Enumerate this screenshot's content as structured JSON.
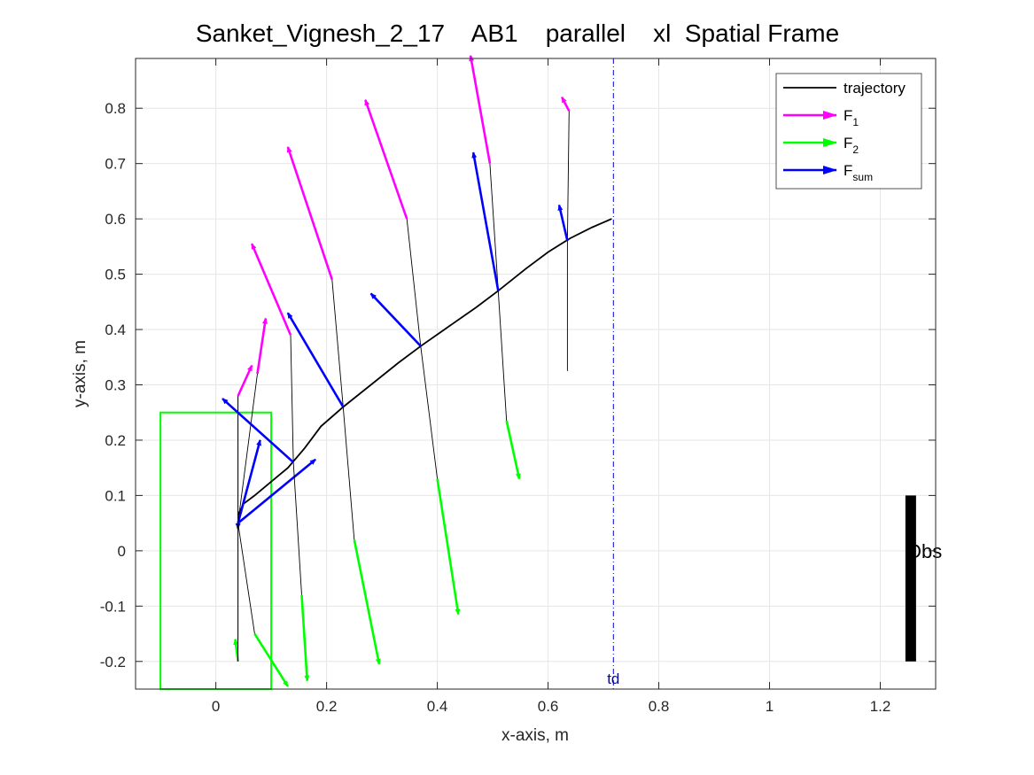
{
  "chart_data": {
    "type": "line",
    "title": "Sanket_Vignesh_2_17    AB1    parallel    xl  Spatial Frame",
    "xlabel": "x-axis, m",
    "ylabel": "y-axis, m",
    "xlim": [
      -0.145,
      1.3
    ],
    "ylim": [
      -0.25,
      0.89
    ],
    "xticks": [
      0,
      0.2,
      0.4,
      0.6,
      0.8,
      1.0,
      1.2
    ],
    "xticklabels": [
      "0",
      "0.2",
      "0.4",
      "0.6",
      "0.8",
      "1",
      "1.2"
    ],
    "yticks": [
      -0.2,
      -0.1,
      0,
      0.1,
      0.2,
      0.3,
      0.4,
      0.5,
      0.6,
      0.7,
      0.8
    ],
    "yticklabels": [
      "-0.2",
      "-0.1",
      "0",
      "0.1",
      "0.2",
      "0.3",
      "0.4",
      "0.5",
      "0.6",
      "0.7",
      "0.8"
    ],
    "grid": true,
    "legend_location": "top-right",
    "legend": [
      {
        "label": "trajectory",
        "sub": "",
        "color": "#000000",
        "kind": "line"
      },
      {
        "label": "F",
        "sub": "1",
        "color": "#ff00ff",
        "kind": "arrow"
      },
      {
        "label": "F",
        "sub": "2",
        "color": "#00ff00",
        "kind": "arrow"
      },
      {
        "label": "F",
        "sub": "sum",
        "color": "#0000ff",
        "kind": "arrow"
      }
    ],
    "colors": {
      "trajectory": "#000000",
      "F1": "#ff00ff",
      "F2": "#00ff00",
      "Fsum": "#0000ff",
      "start_box": "#00ff00",
      "td_line": "#0000cc",
      "obstacle": "#000000"
    },
    "trajectory": {
      "x": [
        0.04,
        0.05,
        0.07,
        0.1,
        0.13,
        0.16,
        0.19,
        0.23,
        0.28,
        0.33,
        0.37,
        0.42,
        0.47,
        0.51,
        0.56,
        0.6,
        0.64,
        0.68,
        0.715
      ],
      "y": [
        0.065,
        0.085,
        0.1,
        0.125,
        0.15,
        0.185,
        0.225,
        0.26,
        0.3,
        0.34,
        0.37,
        0.405,
        0.44,
        0.47,
        0.51,
        0.54,
        0.565,
        0.585,
        0.6
      ]
    },
    "force_samples": [
      {
        "point": [
          0.04,
          0.05
        ],
        "f1": [
          [
            0.04,
            0.28
          ],
          [
            0.04,
            0.28
          ]
        ],
        "f2": [
          [
            0.04,
            -0.2
          ],
          [
            0.035,
            -0.16
          ]
        ],
        "fsum": [
          [
            0.04,
            0.05
          ],
          [
            0.04,
            0.04
          ]
        ]
      },
      {
        "point": [
          0.04,
          0.05
        ],
        "f1": [
          [
            0.04,
            0.28
          ],
          [
            0.065,
            0.335
          ]
        ],
        "f2": [
          [
            0.04,
            -0.2
          ],
          [
            0.04,
            -0.2
          ]
        ],
        "fsum": [
          [
            0.04,
            0.05
          ],
          [
            0.08,
            0.2
          ]
        ]
      },
      {
        "point": [
          0.04,
          0.05
        ],
        "f1": [
          [
            0.075,
            0.32
          ],
          [
            0.09,
            0.42
          ]
        ],
        "f2": [
          [
            0.07,
            -0.15
          ],
          [
            0.13,
            -0.245
          ]
        ],
        "fsum": [
          [
            0.04,
            0.05
          ],
          [
            0.18,
            0.165
          ]
        ]
      },
      {
        "point": [
          0.14,
          0.16
        ],
        "f1": [
          [
            0.135,
            0.39
          ],
          [
            0.065,
            0.555
          ]
        ],
        "f2": [
          [
            0.155,
            -0.08
          ],
          [
            0.165,
            -0.235
          ]
        ],
        "fsum": [
          [
            0.14,
            0.16
          ],
          [
            0.012,
            0.275
          ]
        ]
      },
      {
        "point": [
          0.23,
          0.26
        ],
        "f1": [
          [
            0.21,
            0.49
          ],
          [
            0.13,
            0.73
          ]
        ],
        "f2": [
          [
            0.25,
            0.02
          ],
          [
            0.295,
            -0.205
          ]
        ],
        "fsum": [
          [
            0.23,
            0.26
          ],
          [
            0.13,
            0.43
          ]
        ]
      },
      {
        "point": [
          0.37,
          0.37
        ],
        "f1": [
          [
            0.345,
            0.6
          ],
          [
            0.27,
            0.815
          ]
        ],
        "f2": [
          [
            0.4,
            0.13
          ],
          [
            0.438,
            -0.115
          ]
        ],
        "fsum": [
          [
            0.37,
            0.37
          ],
          [
            0.28,
            0.465
          ]
        ]
      },
      {
        "point": [
          0.51,
          0.47
        ],
        "f1": [
          [
            0.495,
            0.7
          ],
          [
            0.46,
            0.895
          ]
        ],
        "f2": [
          [
            0.525,
            0.235
          ],
          [
            0.548,
            0.13
          ]
        ],
        "fsum": [
          [
            0.51,
            0.47
          ],
          [
            0.465,
            0.72
          ]
        ]
      },
      {
        "point": [
          0.635,
          0.56
        ],
        "f1": [
          [
            0.638,
            0.795
          ],
          [
            0.625,
            0.82
          ]
        ],
        "f2": [
          [
            0.635,
            0.325
          ],
          [
            0.635,
            0.325
          ]
        ],
        "fsum": [
          [
            0.635,
            0.56
          ],
          [
            0.62,
            0.625
          ]
        ]
      }
    ],
    "start_box": {
      "x": [
        -0.1,
        0.1
      ],
      "y": [
        -0.25,
        0.25
      ]
    },
    "td_line": {
      "x": 0.718,
      "label": "td"
    },
    "obstacle": {
      "x": 1.255,
      "y": [
        -0.2,
        0.1
      ],
      "label": "Obs"
    }
  }
}
